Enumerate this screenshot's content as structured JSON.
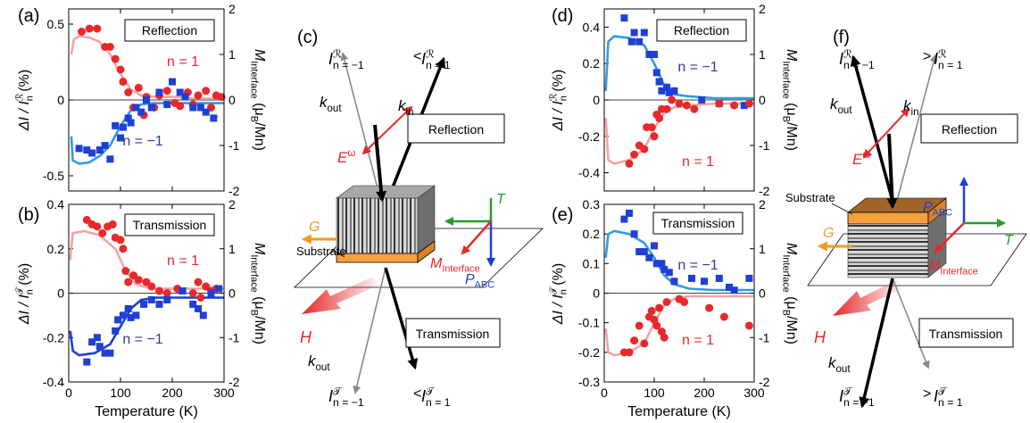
{
  "chart_data": [
    {
      "type": "scatter",
      "panel_label": "(a)",
      "box_label": "Reflection",
      "annotations": [
        {
          "text": "n = 1",
          "color": "#e8282a"
        },
        {
          "text": "n = −1",
          "color": "#2b3a9c"
        }
      ],
      "ylabel": {
        "base": "ΔI / I",
        "sup": "ℛ",
        "sub": "n",
        "unit": " (%)"
      },
      "y2label": {
        "base": "M",
        "sub": "Interface",
        "unit": " (μ",
        "sub2": "B",
        "unit2": "/Mn)"
      },
      "xlim": [
        0,
        300
      ],
      "xticks": [
        0,
        100,
        200,
        300
      ],
      "xtick_labels": false,
      "ylim": [
        -0.6,
        0.6
      ],
      "yticks": [
        -0.5,
        0,
        0.5
      ],
      "y2lim": [
        -2,
        2
      ],
      "y2ticks": [
        -2,
        -1,
        0,
        1,
        2
      ],
      "zero_line": true,
      "series": [
        {
          "marker": "line",
          "color": "#f4a3a3",
          "axis": "y2",
          "x": [
            5,
            10,
            20,
            40,
            60,
            80,
            100,
            120,
            140,
            160,
            200,
            250,
            300
          ],
          "values": [
            1.0,
            1.33,
            1.4,
            1.37,
            1.27,
            1.0,
            0.57,
            0.23,
            0.1,
            0.07,
            0.07,
            0.03,
            0.03
          ]
        },
        {
          "marker": "line",
          "color": "#2f9be4",
          "axis": "y2",
          "x": [
            5,
            8,
            20,
            40,
            60,
            80,
            100,
            120,
            140,
            160,
            200,
            300
          ],
          "values": [
            -0.8,
            -1.33,
            -1.4,
            -1.37,
            -1.23,
            -1.0,
            -0.57,
            -0.23,
            -0.1,
            -0.07,
            -0.07,
            -0.07
          ]
        },
        {
          "marker": "circle",
          "color": "#e8282a",
          "x": [
            25,
            40,
            55,
            70,
            80,
            90,
            100,
            105,
            115,
            125,
            135,
            145,
            150,
            165,
            175,
            190,
            205,
            215,
            230,
            240,
            250,
            265,
            275,
            285,
            295
          ],
          "values": [
            0.45,
            0.47,
            0.47,
            0.35,
            0.35,
            0.27,
            0.2,
            0.12,
            0.05,
            -0.05,
            0.08,
            -0.1,
            0.02,
            -0.05,
            0.03,
            0.06,
            -0.02,
            -0.04,
            0.05,
            -0.03,
            0.03,
            0.06,
            -0.05,
            0.03,
            0.02
          ]
        },
        {
          "marker": "square",
          "color": "#1f3fd6",
          "x": [
            20,
            35,
            45,
            60,
            70,
            80,
            90,
            100,
            105,
            115,
            120,
            130,
            140,
            150,
            160,
            175,
            190,
            200,
            215,
            225,
            240,
            255,
            265,
            280
          ],
          "values": [
            -0.32,
            -0.33,
            -0.35,
            -0.33,
            -0.3,
            -0.39,
            -0.17,
            -0.25,
            -0.18,
            -0.12,
            -0.15,
            -0.05,
            -0.08,
            0.0,
            -0.05,
            0.05,
            -0.03,
            0.12,
            0.05,
            0.02,
            -0.05,
            -0.05,
            -0.08,
            -0.12
          ]
        }
      ]
    },
    {
      "type": "scatter",
      "panel_label": "(b)",
      "box_label": "Transmission",
      "annotations": [
        {
          "text": "n = 1",
          "color": "#e8282a"
        },
        {
          "text": "n = −1",
          "color": "#2b3a9c"
        }
      ],
      "ylabel": {
        "base": "ΔI / I",
        "sup": "𝒯",
        "sub": "n",
        "unit": " (%)"
      },
      "y2label": {
        "base": "M",
        "sub": "Interface",
        "unit": " (μ",
        "sub2": "B",
        "unit2": "/Mn)"
      },
      "xlabel": "Temperature (K)",
      "xlim": [
        0,
        300
      ],
      "xticks": [
        0,
        100,
        200,
        300
      ],
      "xtick_labels": true,
      "ylim": [
        -0.4,
        0.4
      ],
      "yticks": [
        -0.4,
        -0.2,
        0,
        0.2,
        0.4
      ],
      "y2lim": [
        -2,
        2
      ],
      "y2ticks": [
        -2,
        -1,
        0,
        1,
        2
      ],
      "zero_line": true,
      "series": [
        {
          "marker": "line",
          "color": "#f4a3a3",
          "axis": "y2",
          "x": [
            3,
            8,
            30,
            60,
            90,
            110,
            130,
            160,
            220,
            300
          ],
          "values": [
            0.75,
            1.35,
            1.4,
            1.3,
            1.0,
            0.5,
            0.2,
            0.1,
            0.1,
            0.1
          ]
        },
        {
          "marker": "line",
          "color": "#1c3fd0",
          "axis": "y2",
          "x": [
            3,
            8,
            20,
            50,
            80,
            100,
            120,
            140,
            170,
            220,
            300
          ],
          "values": [
            -0.85,
            -1.3,
            -1.4,
            -1.35,
            -1.15,
            -0.75,
            -0.35,
            -0.15,
            -0.1,
            -0.1,
            -0.1
          ]
        },
        {
          "marker": "circle",
          "color": "#e8282a",
          "x": [
            35,
            45,
            55,
            65,
            75,
            85,
            90,
            100,
            105,
            110,
            115,
            125,
            135,
            150,
            160,
            175,
            190,
            210,
            240,
            250,
            255,
            265,
            275,
            285
          ],
          "values": [
            0.33,
            0.31,
            0.3,
            0.27,
            0.3,
            0.31,
            0.25,
            0.24,
            0.2,
            0.1,
            0.05,
            0.08,
            0.06,
            0.05,
            0.03,
            0.01,
            0.0,
            0.02,
            0.0,
            0.05,
            -0.02,
            0.03,
            0.01,
            0.02
          ]
        },
        {
          "marker": "square",
          "color": "#1f3fd6",
          "x": [
            35,
            45,
            55,
            60,
            70,
            80,
            90,
            95,
            105,
            115,
            120,
            130,
            145,
            160,
            175,
            190,
            220,
            240,
            250,
            260,
            275,
            290
          ],
          "values": [
            -0.31,
            -0.22,
            -0.2,
            -0.24,
            -0.27,
            -0.27,
            -0.17,
            -0.12,
            -0.1,
            -0.07,
            -0.11,
            -0.1,
            -0.05,
            -0.03,
            -0.05,
            -0.03,
            0.01,
            -0.05,
            -0.07,
            -0.1,
            0.0,
            0.02
          ]
        }
      ]
    },
    {
      "type": "scatter",
      "panel_label": "(d)",
      "box_label": "Reflection",
      "annotations": [
        {
          "text": "n = −1",
          "color": "#2b3a9c"
        },
        {
          "text": "n = 1",
          "color": "#e8282a"
        }
      ],
      "ylabel": {
        "base": "ΔI / I",
        "sup": "ℛ",
        "sub": "n",
        "unit": " (%)"
      },
      "y2label": {
        "base": "M",
        "sub": "Interface",
        "unit": " (μ",
        "sub2": "B",
        "unit2": "/Mn)"
      },
      "xlim": [
        0,
        300
      ],
      "xticks": [
        0,
        100,
        200,
        300
      ],
      "xtick_labels": false,
      "ylim": [
        -0.5,
        0.5
      ],
      "yticks": [
        -0.4,
        -0.2,
        0,
        0.2,
        0.4
      ],
      "y2lim": [
        -2,
        2
      ],
      "y2ticks": [
        -2,
        -1,
        0,
        1,
        2
      ],
      "zero_line": true,
      "series": [
        {
          "marker": "line",
          "color": "#2f9be4",
          "axis": "y2",
          "x": [
            3,
            8,
            20,
            50,
            80,
            100,
            120,
            140,
            170,
            220,
            300
          ],
          "values": [
            0.2,
            1.28,
            1.4,
            1.36,
            1.2,
            0.8,
            0.32,
            0.12,
            0.08,
            0.04,
            0.04
          ]
        },
        {
          "marker": "line",
          "color": "#f4a3a3",
          "axis": "y2",
          "x": [
            3,
            8,
            20,
            50,
            80,
            100,
            120,
            140,
            170,
            220,
            300
          ],
          "values": [
            -0.4,
            -1.32,
            -1.4,
            -1.32,
            -1.08,
            -0.64,
            -0.28,
            -0.16,
            -0.12,
            -0.08,
            -0.08
          ]
        },
        {
          "marker": "square",
          "color": "#1f3fd6",
          "x": [
            40,
            55,
            60,
            70,
            80,
            90,
            100,
            105,
            110,
            115,
            125,
            130,
            140,
            195,
            230,
            280
          ],
          "values": [
            0.45,
            0.32,
            0.37,
            0.32,
            0.37,
            0.25,
            0.25,
            0.15,
            0.1,
            0.05,
            0.07,
            0.04,
            0.05,
            0.0,
            -0.02,
            -0.03
          ]
        },
        {
          "marker": "circle",
          "color": "#e8282a",
          "x": [
            50,
            60,
            70,
            80,
            85,
            95,
            100,
            105,
            110,
            115,
            125,
            135,
            150,
            165,
            180,
            230,
            260,
            290
          ],
          "values": [
            -0.35,
            -0.3,
            -0.25,
            -0.27,
            -0.15,
            -0.15,
            -0.2,
            -0.08,
            -0.1,
            -0.05,
            -0.05,
            0.0,
            -0.02,
            -0.03,
            -0.05,
            -0.02,
            -0.03,
            -0.02
          ]
        }
      ]
    },
    {
      "type": "scatter",
      "panel_label": "(e)",
      "box_label": "Transmission",
      "annotations": [
        {
          "text": "n = −1",
          "color": "#2b3a9c"
        },
        {
          "text": "n = 1",
          "color": "#e8282a"
        }
      ],
      "ylabel": {
        "base": "ΔI / I",
        "sup": "𝒯",
        "sub": "n",
        "unit": " (%)"
      },
      "y2label": {
        "base": "M",
        "sub": "Interface",
        "unit": " (μ",
        "sub2": "B",
        "unit2": "/Mn)"
      },
      "xlabel": "Temperature (K)",
      "xlim": [
        0,
        300
      ],
      "xticks": [
        0,
        100,
        200,
        300
      ],
      "xtick_labels": true,
      "ylim": [
        -0.3,
        0.3
      ],
      "yticks": [
        -0.3,
        -0.2,
        -0.1,
        0,
        0.1,
        0.2,
        0.3
      ],
      "y2lim": [
        -2,
        2
      ],
      "y2ticks": [
        -2,
        -1,
        0,
        1,
        2
      ],
      "zero_line": true,
      "series": [
        {
          "marker": "line",
          "color": "#2f9be4",
          "axis": "y2",
          "x": [
            3,
            8,
            20,
            50,
            80,
            100,
            120,
            140,
            170,
            220,
            300
          ],
          "values": [
            0.8,
            1.33,
            1.4,
            1.33,
            1.13,
            0.8,
            0.4,
            0.2,
            0.1,
            0.07,
            0.07
          ]
        },
        {
          "marker": "line",
          "color": "#f4a3a3",
          "axis": "y2",
          "x": [
            3,
            8,
            20,
            50,
            80,
            100,
            120,
            140,
            170,
            220,
            300
          ],
          "values": [
            -0.8,
            -1.33,
            -1.4,
            -1.33,
            -1.13,
            -0.67,
            -0.27,
            -0.13,
            -0.07,
            -0.07,
            -0.07
          ]
        },
        {
          "marker": "square",
          "color": "#1f3fd6",
          "x": [
            40,
            50,
            60,
            70,
            80,
            90,
            100,
            105,
            115,
            120,
            130,
            140,
            175,
            200,
            230,
            250,
            260,
            290
          ],
          "values": [
            0.25,
            0.27,
            0.2,
            0.14,
            0.14,
            0.12,
            0.16,
            0.1,
            0.1,
            0.08,
            0.07,
            0.04,
            0.05,
            0.04,
            0.05,
            0.02,
            0.01,
            0.05
          ]
        },
        {
          "marker": "circle",
          "color": "#e8282a",
          "x": [
            40,
            50,
            60,
            70,
            80,
            90,
            95,
            100,
            105,
            110,
            115,
            120,
            125,
            150,
            160,
            210,
            240,
            290
          ],
          "values": [
            -0.2,
            -0.2,
            -0.16,
            -0.11,
            -0.17,
            -0.08,
            -0.06,
            -0.09,
            -0.11,
            -0.05,
            -0.13,
            -0.15,
            -0.03,
            -0.02,
            -0.03,
            -0.05,
            -0.08,
            -0.11
          ]
        }
      ]
    }
  ],
  "diagrams": [
    {
      "label": "(c)",
      "top": {
        "left": {
          "base": "I",
          "sup": "ℛ",
          "sub": "n = −1"
        },
        "relation": "<",
        "right": {
          "base": "I",
          "sup": "ℛ",
          "sub": "n = 1"
        }
      },
      "k_out_top": {
        "base": "k",
        "sub": "out"
      },
      "k_in": {
        "base": "k",
        "sub": "in"
      },
      "field": {
        "base": "E",
        "sup": "ω"
      },
      "reflection": "Reflection",
      "transmission": "Transmission",
      "substrate": "Substrate",
      "G": "G",
      "T": "T",
      "M": {
        "base": "M",
        "sub": "Interface"
      },
      "P": {
        "base": "P",
        "sub": "ABC"
      },
      "H": "H",
      "k_out_bottom": {
        "base": "k",
        "sub": "out"
      },
      "bottom": {
        "left": {
          "base": "I",
          "sup": "𝒯",
          "sub": "n = −1"
        },
        "relation": "<",
        "right": {
          "base": "I",
          "sup": "𝒯",
          "sub": "n = 1"
        }
      }
    },
    {
      "label": "(f)",
      "top": {
        "left": {
          "base": "I",
          "sup": "ℛ",
          "sub": "n = −1"
        },
        "relation": ">",
        "right": {
          "base": "I",
          "sup": "ℛ",
          "sub": "n = 1"
        }
      },
      "k_out_top": {
        "base": "k",
        "sub": "out"
      },
      "k_in": {
        "base": "k",
        "sub": "in"
      },
      "field": {
        "base": "E",
        "sup": "ω"
      },
      "reflection": "Reflection",
      "transmission": "Transmission",
      "substrate": "Substrate",
      "G": "G",
      "T": "T",
      "M": {
        "base": "M",
        "sub": "Interface"
      },
      "P": {
        "base": "P",
        "sub": "ABC"
      },
      "H": "H",
      "k_out_bottom": {
        "base": "k",
        "sub": "out"
      },
      "bottom": {
        "left": {
          "base": "I",
          "sup": "𝒯",
          "sub": "n = −1"
        },
        "relation": ">",
        "right": {
          "base": "I",
          "sup": "𝒯",
          "sub": "n = 1"
        }
      }
    }
  ]
}
